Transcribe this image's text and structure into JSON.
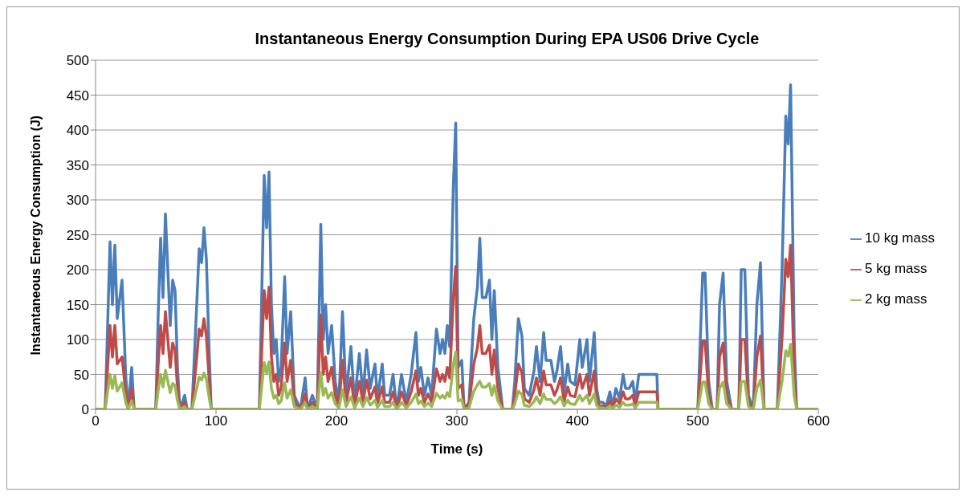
{
  "chart_data": {
    "type": "line",
    "title": "Instantaneous Energy Consumption  During EPA US06 Drive Cycle",
    "xlabel": "Time (s)",
    "ylabel": "Instantaneous Energy Consumption (J)",
    "x": [
      0,
      8,
      12,
      14,
      16,
      18,
      22,
      25,
      27,
      30,
      32,
      50,
      52,
      54,
      56,
      58,
      60,
      62,
      64,
      66,
      68,
      70,
      74,
      76,
      80,
      84,
      86,
      88,
      90,
      92,
      94,
      96,
      100,
      136,
      140,
      142,
      144,
      146,
      148,
      150,
      152,
      154,
      157,
      159,
      162,
      165,
      170,
      174,
      176,
      180,
      184,
      187,
      189,
      191,
      193,
      196,
      199,
      202,
      205,
      208,
      212,
      215,
      219,
      222,
      225,
      228,
      232,
      234,
      238,
      240,
      244,
      247,
      250,
      254,
      258,
      262,
      266,
      268,
      270,
      273,
      276,
      279,
      283,
      286,
      288,
      290,
      292,
      294,
      297,
      299,
      301,
      304,
      306,
      310,
      314,
      317,
      319,
      321,
      324,
      327,
      329,
      331,
      334,
      338,
      346,
      348,
      351,
      354,
      356,
      360,
      364,
      366,
      369,
      372,
      374,
      378,
      381,
      383,
      386,
      389,
      392,
      394,
      398,
      402,
      404,
      408,
      410,
      414,
      416,
      418,
      421,
      424,
      427,
      429,
      432,
      435,
      438,
      440,
      443,
      446,
      448,
      451,
      454,
      458,
      462,
      466,
      467,
      500,
      504,
      506,
      509,
      512,
      516,
      518,
      521,
      524,
      528,
      534,
      536,
      539,
      542,
      546,
      549,
      552,
      555,
      566,
      570,
      573,
      575,
      577,
      580,
      582,
      600
    ],
    "series": [
      {
        "name": "10 kg mass",
        "color": "#4a7ebb",
        "values": [
          0,
          0,
          240,
          150,
          235,
          130,
          185,
          50,
          0,
          60,
          0,
          0,
          135,
          245,
          160,
          280,
          200,
          120,
          185,
          170,
          60,
          0,
          20,
          0,
          0,
          150,
          230,
          210,
          260,
          215,
          100,
          0,
          0,
          0,
          335,
          260,
          340,
          150,
          80,
          100,
          40,
          60,
          190,
          80,
          140,
          20,
          0,
          45,
          0,
          20,
          0,
          265,
          100,
          150,
          80,
          120,
          40,
          10,
          140,
          20,
          90,
          10,
          80,
          20,
          85,
          30,
          65,
          15,
          65,
          20,
          20,
          50,
          0,
          50,
          10,
          50,
          110,
          40,
          60,
          20,
          45,
          20,
          115,
          80,
          100,
          80,
          120,
          90,
          320,
          410,
          60,
          70,
          0,
          10,
          130,
          175,
          245,
          160,
          160,
          185,
          100,
          170,
          60,
          0,
          0,
          40,
          130,
          105,
          30,
          20,
          55,
          90,
          40,
          110,
          70,
          70,
          40,
          55,
          90,
          25,
          65,
          40,
          35,
          100,
          60,
          100,
          40,
          110,
          30,
          10,
          10,
          5,
          25,
          5,
          30,
          15,
          50,
          30,
          30,
          40,
          10,
          50,
          50,
          50,
          50,
          50,
          0,
          0,
          195,
          195,
          40,
          0,
          0,
          150,
          195,
          40,
          0,
          0,
          200,
          200,
          20,
          0,
          150,
          210,
          0,
          0,
          205,
          420,
          380,
          465,
          100,
          0,
          0
        ]
      },
      {
        "name": "5 kg mass",
        "color": "#be4b48",
        "values": [
          0,
          0,
          120,
          75,
          120,
          65,
          75,
          25,
          0,
          30,
          0,
          0,
          65,
          120,
          80,
          140,
          100,
          60,
          95,
          85,
          30,
          0,
          10,
          0,
          0,
          75,
          115,
          105,
          130,
          105,
          50,
          0,
          0,
          0,
          170,
          130,
          175,
          75,
          40,
          50,
          20,
          30,
          95,
          40,
          70,
          10,
          0,
          22,
          0,
          10,
          0,
          135,
          50,
          75,
          40,
          60,
          20,
          5,
          70,
          10,
          45,
          5,
          40,
          10,
          42,
          15,
          32,
          8,
          32,
          10,
          10,
          25,
          0,
          25,
          5,
          25,
          55,
          20,
          30,
          10,
          22,
          10,
          58,
          40,
          50,
          40,
          60,
          45,
          160,
          205,
          30,
          35,
          0,
          5,
          65,
          88,
          120,
          80,
          80,
          92,
          50,
          85,
          30,
          0,
          0,
          20,
          65,
          52,
          15,
          10,
          28,
          45,
          20,
          55,
          35,
          35,
          20,
          28,
          45,
          12,
          32,
          20,
          18,
          50,
          30,
          50,
          20,
          55,
          15,
          5,
          5,
          2,
          12,
          2,
          15,
          8,
          25,
          15,
          15,
          20,
          5,
          25,
          25,
          25,
          25,
          25,
          0,
          0,
          98,
          98,
          20,
          0,
          0,
          75,
          95,
          20,
          0,
          0,
          100,
          100,
          10,
          0,
          75,
          105,
          0,
          0,
          105,
          215,
          190,
          235,
          50,
          0,
          0
        ]
      },
      {
        "name": "2 kg mass",
        "color": "#98b954",
        "values": [
          0,
          0,
          50,
          30,
          48,
          26,
          38,
          10,
          0,
          12,
          0,
          0,
          27,
          50,
          32,
          56,
          40,
          24,
          37,
          34,
          12,
          0,
          4,
          0,
          0,
          30,
          46,
          42,
          52,
          43,
          20,
          0,
          0,
          0,
          67,
          52,
          68,
          30,
          16,
          20,
          8,
          12,
          38,
          16,
          28,
          4,
          0,
          9,
          0,
          4,
          0,
          53,
          20,
          30,
          16,
          24,
          8,
          2,
          28,
          4,
          18,
          2,
          16,
          4,
          17,
          6,
          13,
          3,
          13,
          4,
          4,
          10,
          0,
          10,
          2,
          10,
          22,
          8,
          12,
          4,
          9,
          4,
          23,
          16,
          20,
          16,
          24,
          18,
          64,
          82,
          12,
          14,
          0,
          2,
          26,
          35,
          40,
          32,
          32,
          37,
          20,
          34,
          12,
          0,
          0,
          8,
          26,
          21,
          6,
          4,
          11,
          18,
          8,
          22,
          14,
          14,
          8,
          11,
          18,
          5,
          13,
          8,
          7,
          20,
          12,
          20,
          8,
          22,
          6,
          2,
          2,
          1,
          5,
          1,
          6,
          3,
          10,
          6,
          6,
          8,
          2,
          10,
          10,
          10,
          10,
          10,
          0,
          0,
          39,
          39,
          8,
          0,
          0,
          30,
          39,
          8,
          0,
          0,
          40,
          40,
          4,
          0,
          30,
          42,
          0,
          0,
          41,
          84,
          76,
          93,
          20,
          0,
          0
        ]
      }
    ],
    "xlim": [
      0,
      600
    ],
    "xticks": [
      0,
      100,
      200,
      300,
      400,
      500,
      600
    ],
    "ylim": [
      0,
      500
    ],
    "yticks": [
      0,
      50,
      100,
      150,
      200,
      250,
      300,
      350,
      400,
      450,
      500
    ],
    "grid": "y",
    "legend": "right",
    "marker": "none",
    "line_style": "solid"
  }
}
